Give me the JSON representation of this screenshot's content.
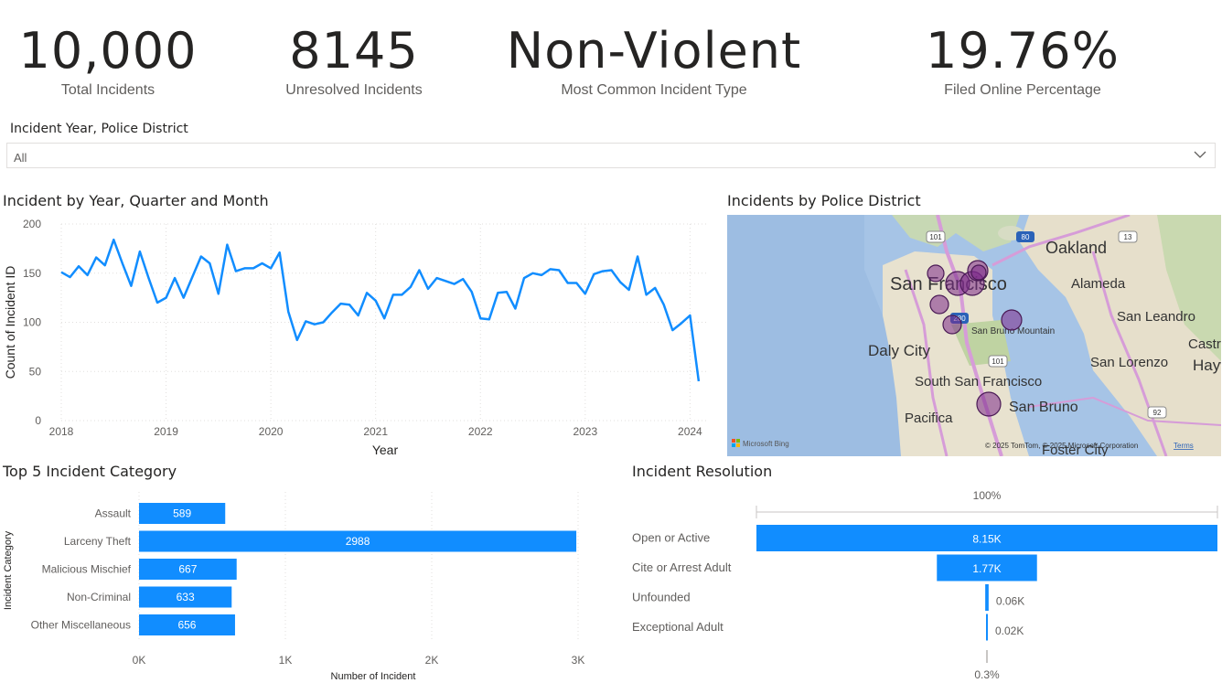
{
  "kpis": [
    {
      "value": "10,000",
      "label": "Total Incidents"
    },
    {
      "value": "8145",
      "label": "Unresolved Incidents"
    },
    {
      "value": "Non-Violent",
      "label": "Most Common Incident Type"
    },
    {
      "value": "19.76%",
      "label": "Filed Online Percentage"
    }
  ],
  "slicer": {
    "title": "Incident Year, Police District",
    "value": "All",
    "icon": "chevron-down-icon"
  },
  "line_chart": {
    "title": "Incident by Year, Quarter and Month"
  },
  "map": {
    "title": "Incidents by Police District",
    "labels": {
      "oakland": "Oakland",
      "san_francisco": "San Francisco",
      "alameda": "Alameda",
      "san_leandro": "San Leandro",
      "daly_city": "Daly City",
      "castro": "Castro",
      "san_bruno_mountain": "San Bruno Mountain",
      "san_lorenzo": "San Lorenzo",
      "hayward": "Hayw",
      "south_sf": "South San Francisco",
      "pacifica": "Pacifica",
      "san_bruno": "San Bruno",
      "foster_city": "Foster City",
      "hwy101": "101",
      "hwy80": "80",
      "hwy13": "13",
      "hwy92": "92",
      "hwy280": "280",
      "hwy101b": "101"
    },
    "attribution": "© 2025 TomTom, © 2025 Microsoft Corporation",
    "terms": "Terms",
    "bing": "Microsoft Bing",
    "bubble_color": "#7b2a8a"
  },
  "bar_chart": {
    "title": "Top 5 Incident Category"
  },
  "resolution": {
    "title": "Incident Resolution",
    "top_label": "100%",
    "bottom_label": "0.3%"
  },
  "chart_data": [
    {
      "type": "line",
      "title": "Incident by Year, Quarter and Month",
      "xlabel": "Year",
      "ylabel": "Count of Incident ID",
      "x_ticks": [
        "2018",
        "2019",
        "2020",
        "2021",
        "2022",
        "2023",
        "2024"
      ],
      "y_ticks": [
        0,
        50,
        100,
        150,
        200
      ],
      "ylim": [
        0,
        200
      ],
      "color": "#118dff",
      "x_start": "2018-01",
      "values": [
        151,
        146,
        157,
        148,
        166,
        158,
        184,
        160,
        137,
        172,
        145,
        120,
        125,
        145,
        125,
        146,
        167,
        160,
        129,
        179,
        152,
        155,
        155,
        160,
        155,
        171,
        111,
        82,
        101,
        98,
        100,
        110,
        119,
        118,
        107,
        130,
        122,
        104,
        128,
        128,
        136,
        153,
        134,
        145,
        142,
        139,
        144,
        131,
        104,
        103,
        130,
        131,
        114,
        145,
        150,
        148,
        154,
        153,
        140,
        140,
        129,
        149,
        152,
        153,
        141,
        133,
        167,
        128,
        135,
        118,
        92,
        99,
        107,
        40
      ],
      "grid": true
    },
    {
      "type": "bar",
      "orientation": "horizontal",
      "title": "Top 5 Incident Category",
      "categories": [
        "Assault",
        "Larceny Theft",
        "Malicious Mischief",
        "Non-Criminal",
        "Other Miscellaneous"
      ],
      "values": [
        589,
        2988,
        667,
        633,
        656
      ],
      "xlabel": "Number of Incident",
      "ylabel": "Incident Category",
      "x_ticks": [
        "0K",
        "1K",
        "2K",
        "3K"
      ],
      "xlim": [
        0,
        3000
      ],
      "color": "#118dff"
    },
    {
      "type": "bar",
      "orientation": "funnel",
      "title": "Incident Resolution",
      "categories": [
        "Open or Active",
        "Cite or Arrest Adult",
        "Unfounded",
        "Exceptional Adult"
      ],
      "values": [
        8150,
        1770,
        60,
        20
      ],
      "value_labels": [
        "8.15K",
        "1.77K",
        "0.06K",
        "0.02K"
      ],
      "color": "#118dff"
    }
  ]
}
